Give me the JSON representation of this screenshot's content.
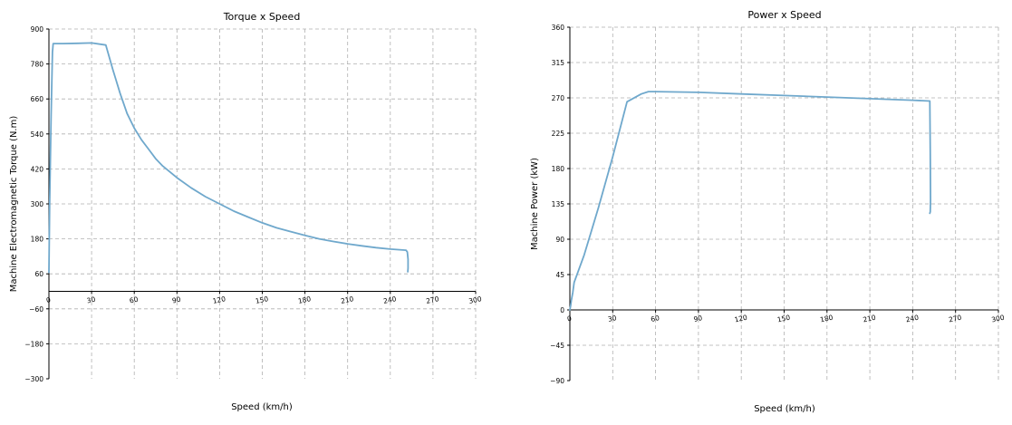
{
  "charts": [
    {
      "id": "torque",
      "title": "Torque x Speed",
      "xlabel": "Speed (km/h)",
      "ylabel": "Machine Electromagnetic Torque (N.m)",
      "color": "#6fa8cc"
    },
    {
      "id": "power",
      "title": "Power x Speed",
      "xlabel": "Speed (km/h)",
      "ylabel": "Machine Power (kW)",
      "color": "#6fa8cc"
    }
  ],
  "chart_data": [
    {
      "type": "line",
      "title": "Torque x Speed",
      "xlabel": "Speed (km/h)",
      "ylabel": "Machine Electromagnetic Torque (N.m)",
      "xlim": [
        0,
        300
      ],
      "ylim": [
        -300,
        900
      ],
      "xticks": [
        0,
        30,
        60,
        90,
        120,
        150,
        180,
        210,
        240,
        270,
        300
      ],
      "yticks": [
        -300,
        -180,
        -60,
        60,
        180,
        300,
        420,
        540,
        660,
        780,
        900
      ],
      "ytick_labels": [
        "−300",
        "−180",
        "−60",
        "60",
        "180",
        "300",
        "420",
        "540",
        "660",
        "780",
        "900"
      ],
      "grid": true,
      "series": [
        {
          "color": "#6fa8cc",
          "x": [
            0,
            0.5,
            1.5,
            2.5,
            3,
            10,
            20,
            30,
            40,
            45,
            50,
            55,
            60,
            65,
            70,
            75,
            80,
            90,
            100,
            110,
            120,
            130,
            140,
            150,
            160,
            170,
            180,
            190,
            200,
            210,
            220,
            230,
            240,
            251,
            252,
            252.5,
            252.5,
            252.3
          ],
          "y": [
            65,
            300,
            600,
            820,
            850,
            850,
            851,
            852,
            845,
            760,
            680,
            610,
            560,
            520,
            488,
            455,
            430,
            390,
            355,
            325,
            300,
            275,
            255,
            235,
            218,
            205,
            192,
            180,
            171,
            163,
            156,
            150,
            145,
            141,
            135,
            110,
            80,
            67
          ]
        }
      ]
    },
    {
      "type": "line",
      "title": "Power x Speed",
      "xlabel": "Speed (km/h)",
      "ylabel": "Machine Power (kW)",
      "xlim": [
        0,
        300
      ],
      "ylim": [
        -90,
        360
      ],
      "xticks": [
        0,
        30,
        60,
        90,
        120,
        150,
        180,
        210,
        240,
        270,
        300
      ],
      "yticks": [
        -90,
        -45,
        0,
        45,
        90,
        135,
        180,
        225,
        270,
        315,
        360
      ],
      "ytick_labels": [
        "−90",
        "−45",
        "0",
        "45",
        "90",
        "135",
        "180",
        "225",
        "270",
        "315",
        "360"
      ],
      "grid": true,
      "series": [
        {
          "color": "#6fa8cc",
          "x": [
            0,
            0.5,
            1,
            2,
            3,
            10,
            20,
            30,
            40,
            50,
            55,
            60,
            90,
            120,
            150,
            180,
            210,
            240,
            252,
            252.3,
            252.5,
            252.3,
            252
          ],
          "y": [
            0,
            5,
            12,
            22,
            35,
            70,
            130,
            195,
            265,
            275,
            278,
            278,
            277,
            275,
            273,
            271,
            269,
            267,
            266,
            200,
            140,
            125,
            123
          ]
        }
      ]
    }
  ]
}
